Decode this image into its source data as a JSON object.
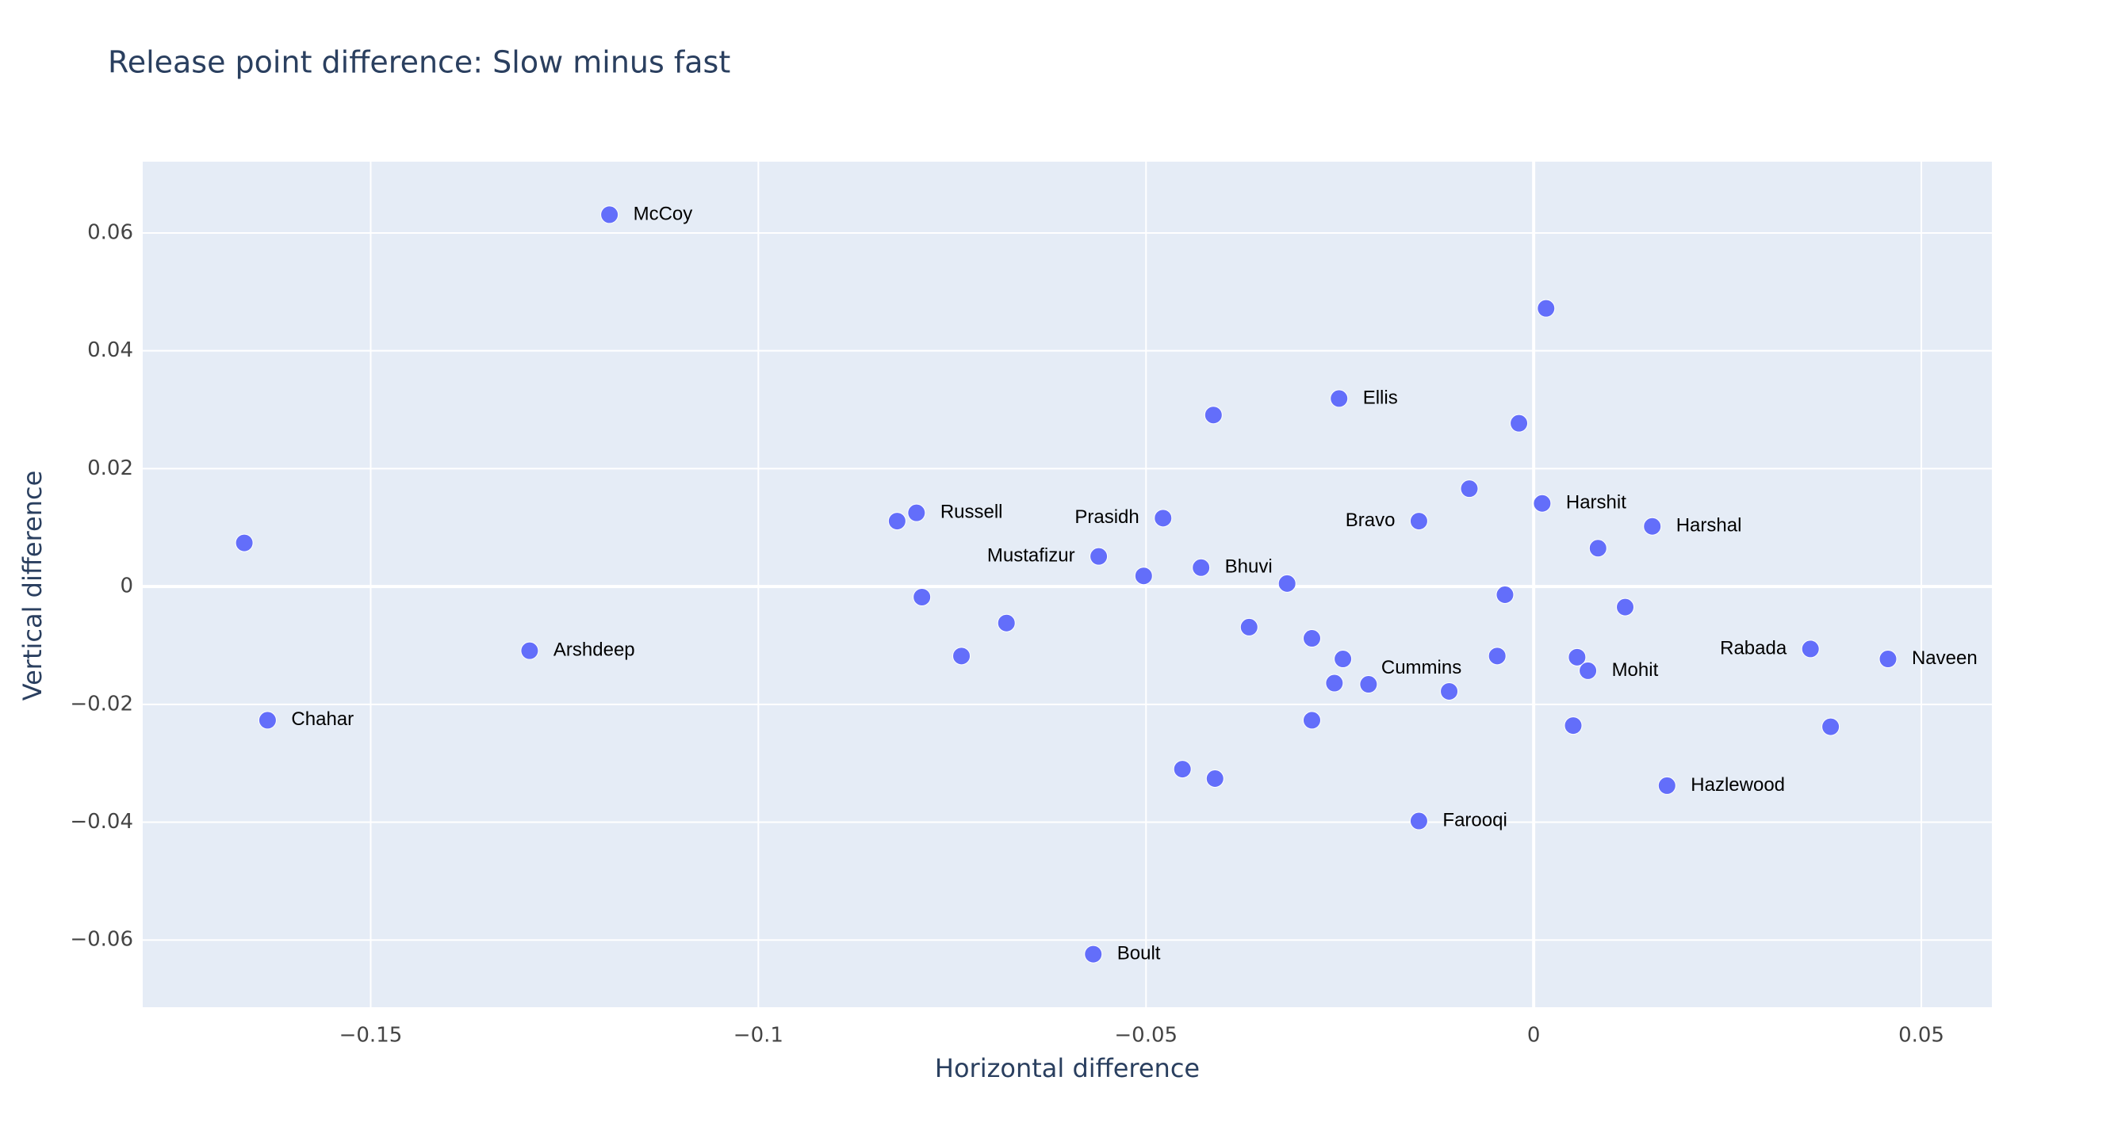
{
  "chart_data": {
    "type": "scatter",
    "title": "Release point difference: Slow minus fast",
    "xlabel": "Horizontal difference",
    "ylabel": "Vertical difference",
    "color": "#636efa",
    "grid": true,
    "xlim": [
      -0.1794,
      0.0591
    ],
    "ylim": [
      -0.0714,
      0.0721
    ],
    "xticks": [
      {
        "value": -0.15,
        "label": "−0.15"
      },
      {
        "value": -0.1,
        "label": "−0.1"
      },
      {
        "value": -0.05,
        "label": "−0.05"
      },
      0,
      0.05
    ],
    "yticks": [
      {
        "value": -0.06,
        "label": "−0.06"
      },
      {
        "value": -0.04,
        "label": "−0.04"
      },
      {
        "value": -0.02,
        "label": "−0.02"
      },
      0,
      0.02,
      0.04,
      0.06
    ],
    "x": [
      -0.1192,
      0.0016,
      -0.0251,
      -0.0413,
      -0.0019,
      -0.0083,
      0.0011,
      -0.0796,
      -0.0821,
      -0.0478,
      -0.0148,
      0.0153,
      -0.1663,
      0.0083,
      -0.0561,
      -0.0429,
      -0.0503,
      -0.0318,
      -0.0037,
      -0.0789,
      0.0118,
      -0.068,
      -0.0367,
      -0.0286,
      0.0357,
      -0.1295,
      -0.0738,
      -0.0047,
      -0.0246,
      0.0056,
      0.0457,
      0.007,
      -0.0257,
      -0.0213,
      -0.0109,
      -0.1633,
      -0.0286,
      0.0051,
      0.0383,
      -0.0453,
      -0.0411,
      0.0172,
      -0.0148,
      -0.0568
    ],
    "values": [
      0.0631,
      0.0472,
      0.0319,
      0.0291,
      0.0277,
      0.0166,
      0.0141,
      0.0125,
      0.0111,
      0.0116,
      0.0111,
      0.0102,
      0.0074,
      0.0065,
      0.0051,
      0.0032,
      0.0018,
      0.0005,
      -0.0014,
      -0.0018,
      -0.0035,
      -0.0062,
      -0.0069,
      -0.0088,
      -0.0106,
      -0.0109,
      -0.0118,
      -0.0118,
      -0.0123,
      -0.012,
      -0.0123,
      -0.0143,
      -0.0164,
      -0.0166,
      -0.0178,
      -0.0227,
      -0.0227,
      -0.0236,
      -0.0238,
      -0.031,
      -0.0326,
      -0.0338,
      -0.0398,
      -0.0624
    ],
    "labels": [
      "McCoy",
      null,
      "Ellis",
      null,
      null,
      null,
      "Harshit",
      "Russell",
      null,
      "Prasidh",
      "Bravo",
      "Harshal",
      null,
      null,
      "Mustafizur",
      "Bhuvi",
      null,
      null,
      null,
      null,
      null,
      null,
      null,
      null,
      "Rabada",
      "Arshdeep",
      null,
      null,
      null,
      null,
      "Naveen",
      "Mohit",
      null,
      "Cummins",
      null,
      "Chahar",
      null,
      null,
      null,
      null,
      null,
      "Hazlewood",
      "Farooqi",
      "Boult"
    ],
    "textposition": [
      "right",
      null,
      "right",
      null,
      null,
      null,
      "right",
      "right",
      null,
      "left",
      "left",
      "right",
      null,
      null,
      "left",
      "right",
      null,
      null,
      null,
      null,
      null,
      null,
      null,
      null,
      "left",
      "right",
      null,
      null,
      null,
      null,
      "right",
      "right",
      null,
      "top right",
      null,
      "right",
      null,
      null,
      null,
      null,
      null,
      "right",
      "right",
      "right"
    ]
  }
}
